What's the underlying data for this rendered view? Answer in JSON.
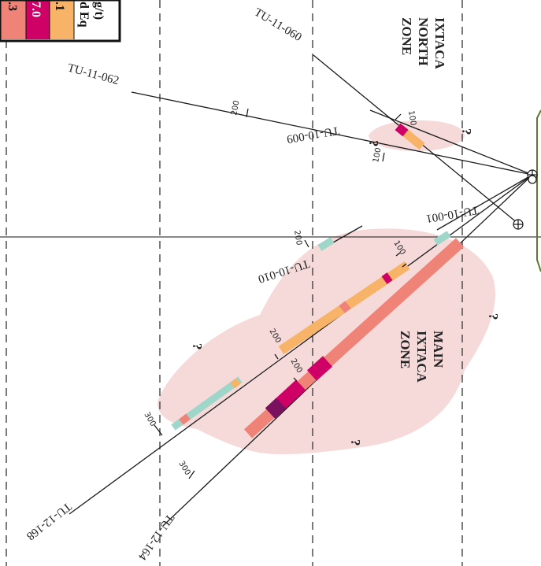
{
  "legend": {
    "title_partial": "d Eq",
    "unit_partial": "g/t)",
    "values": [
      ".3",
      "7.0",
      ".1"
    ],
    "colors": [
      "#f07d7d",
      "#cf0066",
      "#f7b468",
      "#ffffff"
    ]
  },
  "zones": {
    "north": [
      "IXTACA",
      "NORTH",
      "ZONE"
    ],
    "main": [
      "MAIN",
      "IXTACA",
      "ZONE"
    ]
  },
  "holes": {
    "tu_11_060": "TU-11-060",
    "tu_11_062": "TU-11-062",
    "tu_10_009": "TU-10-009",
    "tu_10_001": "TU-10-001",
    "tu_10_010": "TU-10-010",
    "tu_12_168": "TU-12-168",
    "tu_12_164": "TU-12-164"
  },
  "depth_ticks": [
    "200",
    "100",
    "100",
    "200",
    "100",
    "200",
    "200",
    "300",
    "300"
  ],
  "question_mark": "?",
  "colors": {
    "zone_fill": "#f5d3d3",
    "coral": "#f08378",
    "orange": "#f7b468",
    "teal": "#9fd6ca",
    "magenta": "#cf0066",
    "purple": "#7a1060",
    "surface": "#5b7a2a"
  }
}
